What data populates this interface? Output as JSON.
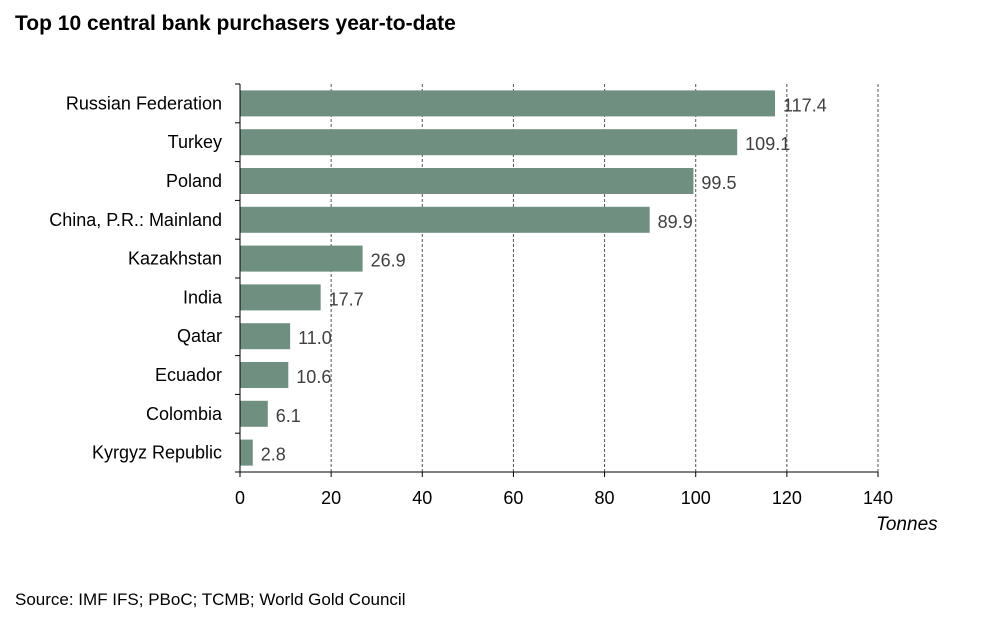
{
  "title": "Top 10 central bank purchasers year-to-date",
  "source": "Source: IMF IFS; PBoC; TCMB; World Gold Council",
  "chart_data": {
    "type": "bar",
    "orientation": "horizontal",
    "title": "Top 10 central bank purchasers year-to-date",
    "xlabel": "Tonnes",
    "ylabel": "",
    "categories": [
      "Russian Federation",
      "Turkey",
      "Poland",
      "China, P.R.: Mainland",
      "Kazakhstan",
      "India",
      "Qatar",
      "Ecuador",
      "Colombia",
      "Kyrgyz Republic"
    ],
    "values": [
      117.4,
      109.1,
      99.5,
      89.9,
      26.9,
      17.7,
      11.0,
      10.6,
      6.1,
      2.8
    ],
    "value_labels": [
      "117.4",
      "109.1",
      "99.5",
      "89.9",
      "26.9",
      "17.7",
      "11.0",
      "10.6",
      "6.1",
      "2.8"
    ],
    "xlim": [
      0,
      140
    ],
    "xticks": [
      0,
      20,
      40,
      60,
      80,
      100,
      120,
      140
    ],
    "grid": "vertical dashed",
    "legend": "none",
    "bar_color": "#6f8f80"
  }
}
